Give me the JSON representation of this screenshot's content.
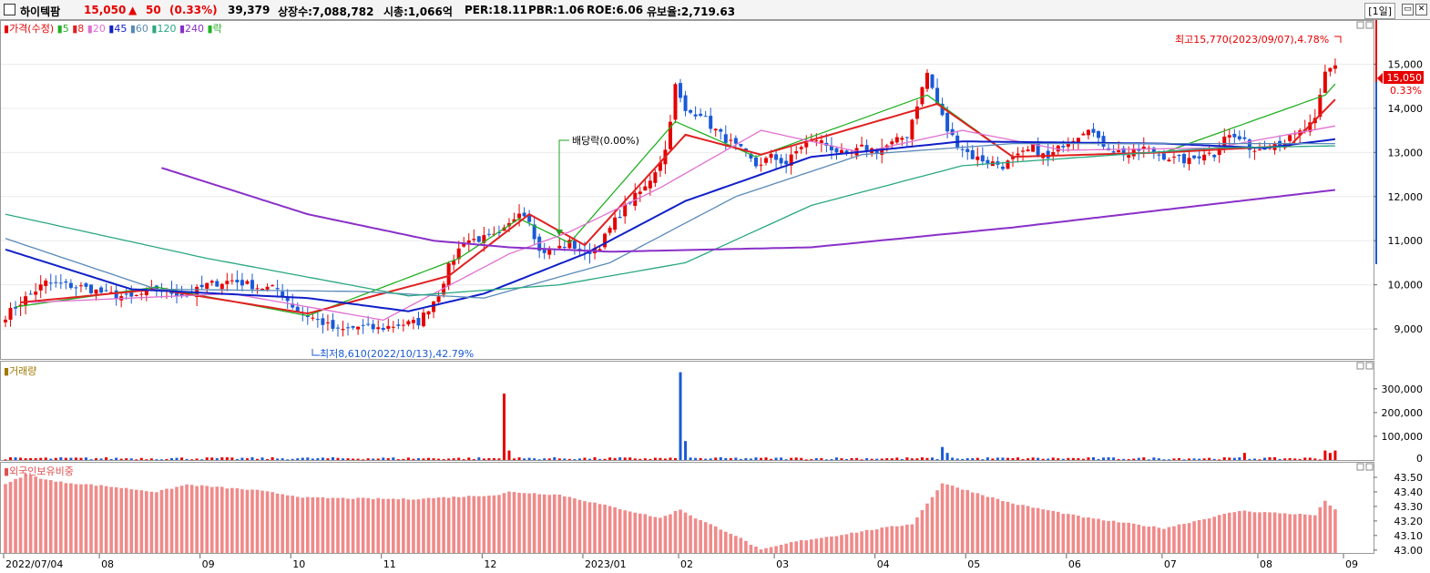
{
  "header": {
    "name": "하이텍팜",
    "price": "15,050",
    "change_arrow": "▲",
    "change": "50",
    "change_pct": "(0.33%)",
    "volume": "39,379",
    "listed_shares": "상장수:7,088,782",
    "market_cap": "시총:1,066억",
    "per": "PER:18.11",
    "pbr": "PBR:1.06",
    "roe": "ROE:6.06",
    "float_ratio": "유보율:2,719.63",
    "period": "[1일]"
  },
  "legend": {
    "price_label": "가격(수정)",
    "ma_items": [
      {
        "label": "5",
        "color": "#22b022"
      },
      {
        "label": "8",
        "color": "#e02020"
      },
      {
        "label": "20",
        "color": "#e070d0"
      },
      {
        "label": "45",
        "color": "#1020c8"
      },
      {
        "label": "60",
        "color": "#5a8ab8"
      },
      {
        "label": "120",
        "color": "#2aa880"
      },
      {
        "label": "240",
        "color": "#8a30c8"
      }
    ],
    "dividend_marker": "락",
    "volume_label": "거래량",
    "foreign_label": "외국인보유비중"
  },
  "annotations": {
    "high": "최고15,770(2023/09/07),4.78%",
    "low": "최저8,610(2022/10/13),42.79%",
    "dividend": "배당락(0.00%)",
    "last_price": "15,050",
    "last_pct": "0.33%"
  },
  "colors": {
    "up": "#e60000",
    "down": "#1a5ad8",
    "bg": "#ffffff",
    "grid": "#d8d8d8"
  },
  "chart_data": [
    {
      "type": "candlestick",
      "title": "가격(수정)",
      "ylim": [
        8300,
        16000
      ],
      "yticks": [
        "9,000",
        "10,000",
        "11,000",
        "12,000",
        "13,000",
        "14,000",
        "15,000"
      ],
      "ytick_values": [
        9000,
        10000,
        11000,
        12000,
        13000,
        14000,
        15000
      ],
      "close_path": [
        [
          0,
          9300
        ],
        [
          4,
          9700
        ],
        [
          8,
          10050
        ],
        [
          15,
          9950
        ],
        [
          20,
          9800
        ],
        [
          25,
          9700
        ],
        [
          30,
          9900
        ],
        [
          36,
          9750
        ],
        [
          40,
          10000
        ],
        [
          45,
          10100
        ],
        [
          50,
          9950
        ],
        [
          54,
          9900
        ],
        [
          58,
          9400
        ],
        [
          62,
          9200
        ],
        [
          66,
          8950
        ],
        [
          70,
          9050
        ],
        [
          74,
          9000
        ],
        [
          78,
          9100
        ],
        [
          82,
          9150
        ],
        [
          86,
          9800
        ],
        [
          88,
          10400
        ],
        [
          91,
          11000
        ],
        [
          95,
          11050
        ],
        [
          98,
          11100
        ],
        [
          100,
          11350
        ],
        [
          102,
          11700
        ],
        [
          104,
          11500
        ],
        [
          106,
          10750
        ],
        [
          109,
          10800
        ],
        [
          112,
          10950
        ],
        [
          115,
          10700
        ],
        [
          118,
          10900
        ],
        [
          121,
          11450
        ],
        [
          124,
          11900
        ],
        [
          127,
          12200
        ],
        [
          129,
          12600
        ],
        [
          131,
          13050
        ],
        [
          133,
          14500
        ],
        [
          135,
          13900
        ],
        [
          138,
          13900
        ],
        [
          140,
          13600
        ],
        [
          143,
          13300
        ],
        [
          146,
          13050
        ],
        [
          149,
          12700
        ],
        [
          152,
          12900
        ],
        [
          155,
          12750
        ],
        [
          158,
          13150
        ],
        [
          161,
          13300
        ],
        [
          164,
          13100
        ],
        [
          167,
          12900
        ],
        [
          170,
          13100
        ],
        [
          173,
          13050
        ],
        [
          176,
          13200
        ],
        [
          179,
          13400
        ],
        [
          181,
          14100
        ],
        [
          183,
          14800
        ],
        [
          185,
          14100
        ],
        [
          187,
          13500
        ],
        [
          189,
          13200
        ],
        [
          192,
          12900
        ],
        [
          195,
          12800
        ],
        [
          198,
          12700
        ],
        [
          201,
          12900
        ],
        [
          204,
          13100
        ],
        [
          207,
          12850
        ],
        [
          210,
          13200
        ],
        [
          213,
          13400
        ],
        [
          215,
          13600
        ],
        [
          217,
          13250
        ],
        [
          220,
          13050
        ],
        [
          223,
          12950
        ],
        [
          226,
          13100
        ],
        [
          229,
          12950
        ],
        [
          232,
          12850
        ],
        [
          235,
          12800
        ],
        [
          238,
          13000
        ],
        [
          240,
          12950
        ],
        [
          242,
          13400
        ],
        [
          245,
          13300
        ],
        [
          248,
          13050
        ],
        [
          251,
          13200
        ],
        [
          254,
          13250
        ],
        [
          257,
          13450
        ],
        [
          260,
          13700
        ],
        [
          262,
          14800
        ],
        [
          264,
          15000
        ]
      ],
      "moving_averages": [
        {
          "name": "5",
          "color": "#22b022",
          "points": [
            [
              2,
              9500
            ],
            [
              30,
              9950
            ],
            [
              60,
              9300
            ],
            [
              90,
              10600
            ],
            [
              102,
              11500
            ],
            [
              112,
              10950
            ],
            [
              133,
              13700
            ],
            [
              149,
              12900
            ],
            [
              183,
              14300
            ],
            [
              200,
              12900
            ],
            [
              230,
              13000
            ],
            [
              262,
              14300
            ],
            [
              264,
              14550
            ]
          ]
        },
        {
          "name": "8",
          "color": "#e02020",
          "points": [
            [
              3,
              9600
            ],
            [
              30,
              9900
            ],
            [
              60,
              9350
            ],
            [
              88,
              10200
            ],
            [
              104,
              11600
            ],
            [
              115,
              10900
            ],
            [
              135,
              13400
            ],
            [
              150,
              12950
            ],
            [
              185,
              14100
            ],
            [
              200,
              12900
            ],
            [
              230,
              13000
            ],
            [
              255,
              13150
            ],
            [
              264,
              14200
            ]
          ]
        },
        {
          "name": "20",
          "color": "#e070d0",
          "points": [
            [
              5,
              9600
            ],
            [
              45,
              9800
            ],
            [
              75,
              9200
            ],
            [
              100,
              10700
            ],
            [
              112,
              11200
            ],
            [
              130,
              12200
            ],
            [
              150,
              13500
            ],
            [
              170,
              13000
            ],
            [
              190,
              13500
            ],
            [
              210,
              13050
            ],
            [
              240,
              13100
            ],
            [
              264,
              13600
            ]
          ]
        },
        {
          "name": "45",
          "color": "#1020c8",
          "points": [
            [
              0,
              10800
            ],
            [
              25,
              9900
            ],
            [
              60,
              9700
            ],
            [
              80,
              9400
            ],
            [
              95,
              9800
            ],
            [
              115,
              10700
            ],
            [
              135,
              11900
            ],
            [
              160,
              12900
            ],
            [
              190,
              13250
            ],
            [
              230,
              13200
            ],
            [
              250,
              13100
            ],
            [
              264,
              13300
            ]
          ]
        },
        {
          "name": "60",
          "color": "#5a8ab8",
          "points": [
            [
              0,
              11050
            ],
            [
              30,
              9900
            ],
            [
              70,
              9850
            ],
            [
              95,
              9700
            ],
            [
              120,
              10500
            ],
            [
              145,
              12000
            ],
            [
              170,
              12950
            ],
            [
              200,
              13200
            ],
            [
              240,
              13200
            ],
            [
              264,
              13200
            ]
          ]
        },
        {
          "name": "120",
          "color": "#2aa880",
          "points": [
            [
              0,
              11600
            ],
            [
              40,
              10600
            ],
            [
              80,
              9750
            ],
            [
              110,
              10000
            ],
            [
              135,
              10500
            ],
            [
              160,
              11800
            ],
            [
              190,
              12700
            ],
            [
              215,
              12900
            ],
            [
              240,
              13100
            ],
            [
              264,
              13150
            ]
          ]
        },
        {
          "name": "240",
          "color": "#8a30c8",
          "points": [
            [
              31,
              12650
            ],
            [
              60,
              11600
            ],
            [
              85,
              11000
            ],
            [
              100,
              10850
            ],
            [
              120,
              10750
            ],
            [
              160,
              10850
            ],
            [
              200,
              11300
            ],
            [
              230,
              11700
            ],
            [
              264,
              12150
            ]
          ]
        }
      ]
    },
    {
      "type": "bar",
      "title": "거래량",
      "ylim": [
        0,
        380000
      ],
      "yticks": [
        "100,000",
        "200,000",
        "300,000"
      ],
      "ytick_values": [
        100000,
        200000,
        300000
      ],
      "base_level": 8000,
      "spikes": [
        [
          99,
          280000
        ],
        [
          100,
          40000
        ],
        [
          134,
          370000
        ],
        [
          135,
          80000
        ],
        [
          186,
          55000
        ],
        [
          187,
          30000
        ],
        [
          246,
          30000
        ],
        [
          262,
          40000
        ],
        [
          263,
          30000
        ],
        [
          264,
          40000
        ]
      ]
    },
    {
      "type": "bar",
      "title": "외국인보유비중",
      "ylim": [
        42.98,
        43.55
      ],
      "yticks": [
        "43.00",
        "43.10",
        "43.20",
        "43.30",
        "43.40",
        "43.50"
      ],
      "ytick_values": [
        43.0,
        43.1,
        43.2,
        43.3,
        43.4,
        43.5
      ],
      "level_path": [
        [
          0,
          43.45
        ],
        [
          4,
          43.52
        ],
        [
          10,
          43.47
        ],
        [
          20,
          43.44
        ],
        [
          30,
          43.4
        ],
        [
          36,
          43.45
        ],
        [
          50,
          43.41
        ],
        [
          60,
          43.36
        ],
        [
          80,
          43.35
        ],
        [
          98,
          43.38
        ],
        [
          100,
          43.4
        ],
        [
          110,
          43.38
        ],
        [
          120,
          43.3
        ],
        [
          130,
          43.22
        ],
        [
          134,
          43.28
        ],
        [
          137,
          43.22
        ],
        [
          145,
          43.1
        ],
        [
          150,
          43.0
        ],
        [
          157,
          43.06
        ],
        [
          165,
          43.1
        ],
        [
          172,
          43.14
        ],
        [
          180,
          43.18
        ],
        [
          186,
          43.46
        ],
        [
          192,
          43.4
        ],
        [
          200,
          43.32
        ],
        [
          215,
          43.22
        ],
        [
          230,
          43.15
        ],
        [
          245,
          43.27
        ],
        [
          260,
          43.24
        ],
        [
          262,
          43.34
        ],
        [
          264,
          43.28
        ]
      ]
    }
  ],
  "x_axis": {
    "labels": [
      "2022/07/04",
      "08",
      "09",
      "10",
      "11",
      "12",
      "2023/01",
      "02",
      "03",
      "04",
      "05",
      "06",
      "07",
      "08",
      "09"
    ],
    "indices": [
      0,
      19,
      39,
      57,
      75,
      95,
      115,
      134,
      153,
      173,
      191,
      211,
      230,
      249,
      266
    ]
  }
}
